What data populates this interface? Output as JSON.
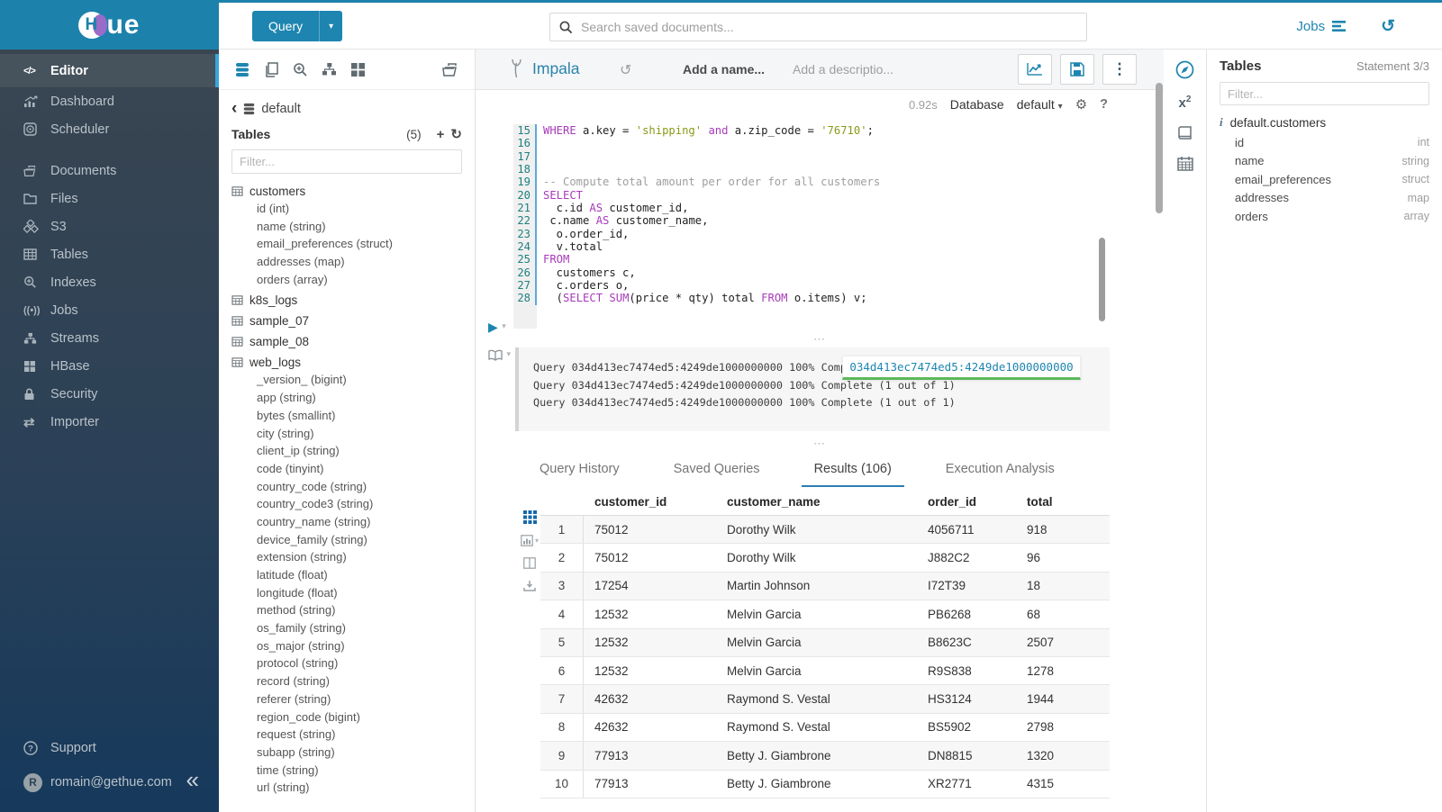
{
  "colors": {
    "brand_blue": "#1d85b0",
    "logo_bg": "#1d82ab",
    "sidebar_top": "#3b4650",
    "sidebar_bottom": "#16395c",
    "active_accent": "#35a7e0",
    "tab_underline": "#2b7eb1",
    "keyword": "#a83bba",
    "string": "#8a9a16",
    "comment": "#9e9e9e",
    "tooltip_underline": "#5cb85c"
  },
  "brand": {
    "logo_h": "H",
    "logo_ue": "ue"
  },
  "topbar": {
    "query_button": "Query",
    "search_placeholder": "Search saved documents...",
    "jobs_label": "Jobs"
  },
  "sidebar": {
    "items": [
      {
        "key": "editor",
        "label": "Editor",
        "icon": "code",
        "active": true
      },
      {
        "key": "dashboard",
        "label": "Dashboard",
        "icon": "dashboard",
        "active": false
      },
      {
        "key": "scheduler",
        "label": "Scheduler",
        "icon": "scheduler",
        "active": false
      },
      {
        "key": "gap1",
        "label": "",
        "icon": "",
        "gap": true
      },
      {
        "key": "documents",
        "label": "Documents",
        "icon": "documents",
        "active": false
      },
      {
        "key": "files",
        "label": "Files",
        "icon": "folder",
        "active": false
      },
      {
        "key": "s3",
        "label": "S3",
        "icon": "cubes",
        "active": false
      },
      {
        "key": "tables",
        "label": "Tables",
        "icon": "grid",
        "active": false
      },
      {
        "key": "indexes",
        "label": "Indexes",
        "icon": "zoomplus",
        "active": false
      },
      {
        "key": "jobs",
        "label": "Jobs",
        "icon": "broadcast",
        "active": false
      },
      {
        "key": "streams",
        "label": "Streams",
        "icon": "sitemap",
        "active": false
      },
      {
        "key": "hbase",
        "label": "HBase",
        "icon": "blocks",
        "active": false
      },
      {
        "key": "security",
        "label": "Security",
        "icon": "lock",
        "active": false
      },
      {
        "key": "importer",
        "label": "Importer",
        "icon": "swap",
        "active": false
      }
    ],
    "support_label": "Support",
    "user_email": "romain@gethue.com",
    "avatar_letter": "R"
  },
  "left_assist": {
    "database": "default",
    "tables_label": "Tables",
    "tables_count": "(5)",
    "filter_placeholder": "Filter...",
    "tree": [
      {
        "name": "customers",
        "columns": [
          "id (int)",
          "name (string)",
          "email_preferences (struct)",
          "addresses (map)",
          "orders (array)"
        ]
      },
      {
        "name": "k8s_logs",
        "columns": []
      },
      {
        "name": "sample_07",
        "columns": []
      },
      {
        "name": "sample_08",
        "columns": []
      },
      {
        "name": "web_logs",
        "columns": [
          "_version_ (bigint)",
          "app (string)",
          "bytes (smallint)",
          "city (string)",
          "client_ip (string)",
          "code (tinyint)",
          "country_code (string)",
          "country_code3 (string)",
          "country_name (string)",
          "device_family (string)",
          "extension (string)",
          "latitude (float)",
          "longitude (float)",
          "method (string)",
          "os_family (string)",
          "os_major (string)",
          "protocol (string)",
          "record (string)",
          "referer (string)",
          "region_code (bigint)",
          "request (string)",
          "subapp (string)",
          "time (string)",
          "url (string)",
          "user_agent (string)"
        ]
      }
    ]
  },
  "editor": {
    "engine": "Impala",
    "name_placeholder": "Add a name...",
    "description_placeholder": "Add a descriptio...",
    "exec_time": "0.92s",
    "database_label": "Database",
    "database_value": "default",
    "lines": [
      {
        "no": "15",
        "segs": [
          [
            "kw",
            "WHERE"
          ],
          [
            "pl",
            " a.key = "
          ],
          [
            "str",
            "'shipping'"
          ],
          [
            "pl",
            " "
          ],
          [
            "kw",
            "and"
          ],
          [
            "pl",
            " a.zip_code = "
          ],
          [
            "str",
            "'76710'"
          ],
          [
            "pl",
            ";"
          ]
        ]
      },
      {
        "no": "16",
        "segs": []
      },
      {
        "no": "17",
        "segs": []
      },
      {
        "no": "18",
        "segs": []
      },
      {
        "no": "19",
        "segs": [
          [
            "com",
            "-- Compute total amount per order for all customers"
          ]
        ]
      },
      {
        "no": "20",
        "segs": [
          [
            "kw",
            "SELECT"
          ]
        ]
      },
      {
        "no": "21",
        "segs": [
          [
            "pl",
            "  c.id "
          ],
          [
            "kw",
            "AS"
          ],
          [
            "pl",
            " customer_id,"
          ]
        ]
      },
      {
        "no": "22",
        "segs": [
          [
            "pl",
            " c.name "
          ],
          [
            "kw",
            "AS"
          ],
          [
            "pl",
            " customer_name,"
          ]
        ]
      },
      {
        "no": "23",
        "segs": [
          [
            "pl",
            "  o.order_id,"
          ]
        ]
      },
      {
        "no": "24",
        "segs": [
          [
            "pl",
            "  v.total"
          ]
        ]
      },
      {
        "no": "25",
        "segs": [
          [
            "kw",
            "FROM"
          ]
        ]
      },
      {
        "no": "26",
        "segs": [
          [
            "pl",
            "  customers c,"
          ]
        ]
      },
      {
        "no": "27",
        "segs": [
          [
            "pl",
            "  c.orders o,"
          ]
        ]
      },
      {
        "no": "28",
        "segs": [
          [
            "pl",
            "  ("
          ],
          [
            "kw",
            "SELECT"
          ],
          [
            "pl",
            " "
          ],
          [
            "kw",
            "SUM"
          ],
          [
            "pl",
            "(price * qty) total "
          ],
          [
            "kw",
            "FROM"
          ],
          [
            "pl",
            " o.items) v;"
          ]
        ]
      }
    ]
  },
  "log": {
    "lines": [
      "Query 034d413ec7474ed5:4249de1000000000 100% Complete (1 out of 1)",
      "Query 034d413ec7474ed5:4249de1000000000 100% Complete (1 out of 1)",
      "Query 034d413ec7474ed5:4249de1000000000 100% Complete (1 out of 1)"
    ],
    "tooltip": "034d413ec7474ed5:4249de1000000000"
  },
  "tabs": [
    {
      "label": "Query History",
      "active": false
    },
    {
      "label": "Saved Queries",
      "active": false
    },
    {
      "label": "Results (106)",
      "active": true
    },
    {
      "label": "Execution Analysis",
      "active": false
    }
  ],
  "results": {
    "columns": [
      "customer_id",
      "customer_name",
      "order_id",
      "total"
    ],
    "rows": [
      [
        "1",
        "75012",
        "Dorothy Wilk",
        "4056711",
        "918"
      ],
      [
        "2",
        "75012",
        "Dorothy Wilk",
        "J882C2",
        "96"
      ],
      [
        "3",
        "17254",
        "Martin Johnson",
        "I72T39",
        "18"
      ],
      [
        "4",
        "12532",
        "Melvin Garcia",
        "PB6268",
        "68"
      ],
      [
        "5",
        "12532",
        "Melvin Garcia",
        "B8623C",
        "2507"
      ],
      [
        "6",
        "12532",
        "Melvin Garcia",
        "R9S838",
        "1278"
      ],
      [
        "7",
        "42632",
        "Raymond S. Vestal",
        "HS3124",
        "1944"
      ],
      [
        "8",
        "42632",
        "Raymond S. Vestal",
        "BS5902",
        "2798"
      ],
      [
        "9",
        "77913",
        "Betty J. Giambrone",
        "DN8815",
        "1320"
      ],
      [
        "10",
        "77913",
        "Betty J. Giambrone",
        "XR2771",
        "4315"
      ]
    ]
  },
  "right_assist": {
    "title": "Tables",
    "statement": "Statement 3/3",
    "filter_placeholder": "Filter...",
    "table": "default.customers",
    "columns": [
      {
        "name": "id",
        "type": "int"
      },
      {
        "name": "name",
        "type": "string"
      },
      {
        "name": "email_preferences",
        "type": "struct"
      },
      {
        "name": "addresses",
        "type": "map"
      },
      {
        "name": "orders",
        "type": "array"
      }
    ]
  }
}
